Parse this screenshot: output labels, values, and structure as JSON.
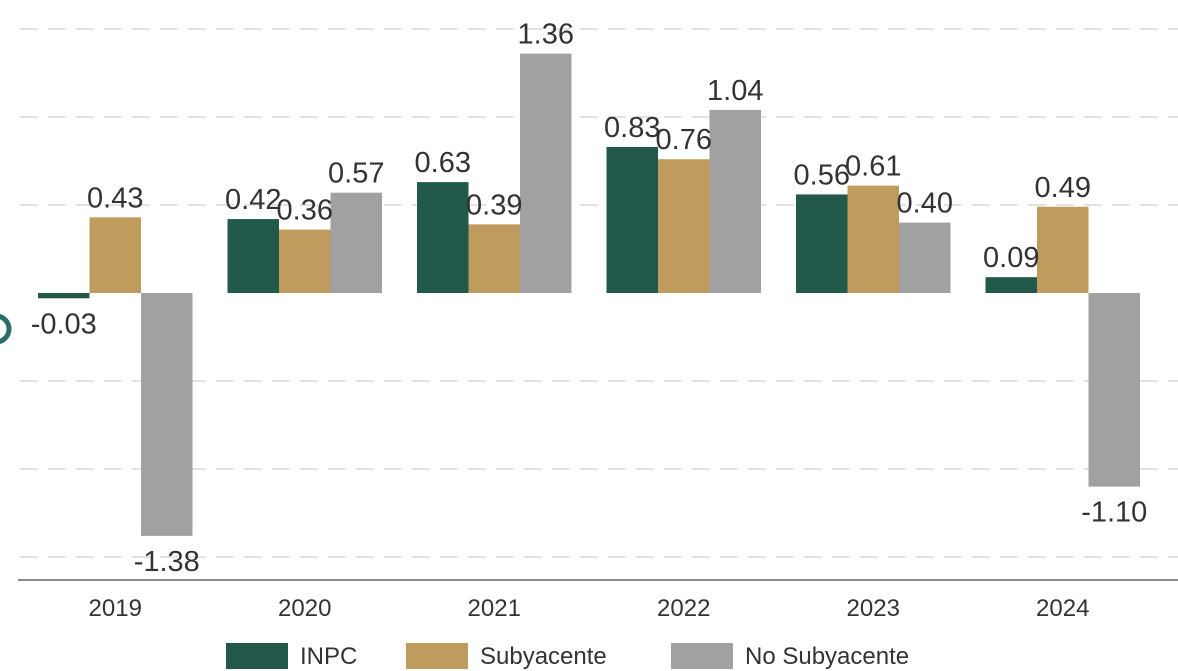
{
  "chart_data": {
    "type": "bar",
    "title": "",
    "xlabel": "",
    "ylabel": "",
    "categories": [
      "2019",
      "2020",
      "2021",
      "2022",
      "2023",
      "2024"
    ],
    "series": [
      {
        "name": "INPC",
        "color": "#23594a",
        "values": [
          -0.03,
          0.42,
          0.63,
          0.83,
          0.56,
          0.09
        ],
        "labels": [
          "-0.03",
          "0.42",
          "0.63",
          "0.83",
          "0.56",
          "0.09"
        ]
      },
      {
        "name": "Subyacente",
        "color": "#bf9b5e",
        "values": [
          0.43,
          0.36,
          0.39,
          0.76,
          0.61,
          0.49
        ],
        "labels": [
          "0.43",
          "0.36",
          "0.39",
          "0.76",
          "0.61",
          "0.49"
        ]
      },
      {
        "name": "No Subyacente",
        "color": "#a1a1a3",
        "values": [
          -1.38,
          0.57,
          1.36,
          1.04,
          0.4,
          -1.1
        ],
        "labels": [
          "-1.38",
          "0.57",
          "1.36",
          "1.04",
          "0.40",
          "-1.10"
        ]
      }
    ],
    "ylim": [
      -1.65,
      1.65
    ],
    "grid": true,
    "legend": "bottom"
  }
}
